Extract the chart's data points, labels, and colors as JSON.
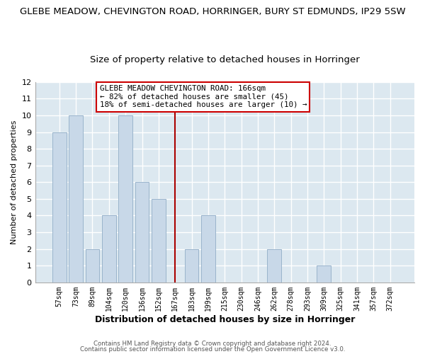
{
  "title1": "GLEBE MEADOW, CHEVINGTON ROAD, HORRINGER, BURY ST EDMUNDS, IP29 5SW",
  "title2": "Size of property relative to detached houses in Horringer",
  "xlabel": "Distribution of detached houses by size in Horringer",
  "ylabel": "Number of detached properties",
  "bin_labels": [
    "57sqm",
    "73sqm",
    "89sqm",
    "104sqm",
    "120sqm",
    "136sqm",
    "152sqm",
    "167sqm",
    "183sqm",
    "199sqm",
    "215sqm",
    "230sqm",
    "246sqm",
    "262sqm",
    "278sqm",
    "293sqm",
    "309sqm",
    "325sqm",
    "341sqm",
    "357sqm",
    "372sqm"
  ],
  "bar_heights": [
    9,
    10,
    2,
    4,
    10,
    6,
    5,
    0,
    2,
    4,
    0,
    0,
    0,
    2,
    0,
    0,
    1,
    0,
    0,
    0,
    0
  ],
  "bar_color": "#c8d8e8",
  "bar_edge_color": "#9ab4cc",
  "vline_color": "#aa0000",
  "annotation_title": "GLEBE MEADOW CHEVINGTON ROAD: 166sqm",
  "annotation_line1": "← 82% of detached houses are smaller (45)",
  "annotation_line2": "18% of semi-detached houses are larger (10) →",
  "annotation_box_color": "#ffffff",
  "annotation_box_edge": "#cc0000",
  "ylim": [
    0,
    12
  ],
  "yticks": [
    0,
    1,
    2,
    3,
    4,
    5,
    6,
    7,
    8,
    9,
    10,
    11,
    12
  ],
  "footer1": "Contains HM Land Registry data © Crown copyright and database right 2024.",
  "footer2": "Contains public sector information licensed under the Open Government Licence v3.0.",
  "plot_bg_color": "#dce8f0",
  "fig_bg_color": "#ffffff",
  "grid_color": "#ffffff",
  "title1_fontsize": 9.5,
  "title2_fontsize": 9.5
}
